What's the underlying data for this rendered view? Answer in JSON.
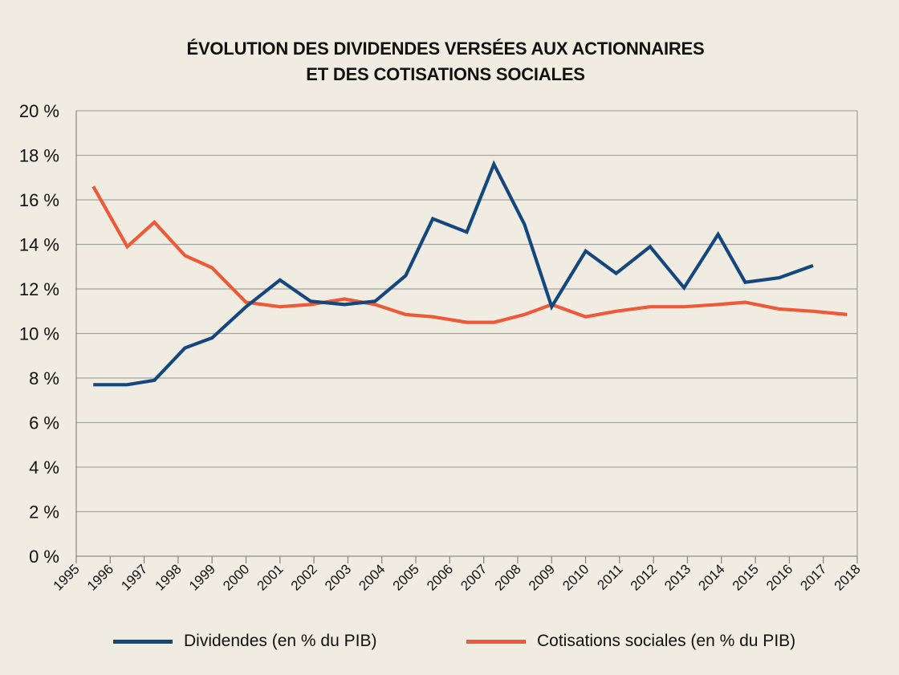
{
  "chart_data": {
    "type": "line",
    "title_lines": [
      "ÉVOLUTION DES DIVIDENDES VERSÉES AUX ACTIONNAIRES",
      "ET DES COTISATIONS SOCIALES"
    ],
    "xlabel": "",
    "ylabel": "",
    "ylim": [
      0,
      20
    ],
    "y_ticks": [
      0,
      2,
      4,
      6,
      8,
      10,
      12,
      14,
      16,
      18,
      20
    ],
    "y_tick_labels": [
      "0 %",
      "2 %",
      "4 %",
      "6 %",
      "8 %",
      "10 %",
      "12 %",
      "14 %",
      "16 %",
      "18 %",
      "20 %"
    ],
    "x_tick_labels": [
      "1995",
      "1996",
      "1997",
      "1998",
      "1999",
      "2000",
      "2001",
      "2002",
      "2003",
      "2004",
      "2005",
      "2006",
      "2007",
      "2008",
      "2009",
      "2010",
      "2011",
      "2012",
      "2013",
      "2014",
      "2015",
      "2016",
      "2017",
      "2018"
    ],
    "grid": true,
    "legend_position": "bottom",
    "series": [
      {
        "name": "Dividendes (en % du PIB)",
        "color": "#15477f",
        "x": [
          1995.5,
          1996.5,
          1997.3,
          1998.2,
          1999.0,
          2000.0,
          2001.0,
          2001.9,
          2002.9,
          2003.8,
          2004.7,
          2005.5,
          2006.5,
          2007.3,
          2008.2,
          2009.0,
          2010.0,
          2010.9,
          2011.9,
          2012.9,
          2013.9,
          2014.7,
          2015.7,
          2016.7
        ],
        "y": [
          7.7,
          7.7,
          7.9,
          9.35,
          9.8,
          11.2,
          12.4,
          11.45,
          11.3,
          11.45,
          12.6,
          15.15,
          14.55,
          17.6,
          14.9,
          11.2,
          13.7,
          12.7,
          13.9,
          12.05,
          14.45,
          12.3,
          12.5,
          13.05
        ]
      },
      {
        "name": "Cotisations sociales (en % du PIB)",
        "color": "#ee5a38",
        "x": [
          1995.5,
          1996.5,
          1997.3,
          1998.2,
          1999.0,
          2000.0,
          2001.0,
          2001.9,
          2002.9,
          2003.8,
          2004.7,
          2005.5,
          2006.5,
          2007.3,
          2008.2,
          2009.0,
          2010.0,
          2010.9,
          2011.9,
          2012.9,
          2013.9,
          2014.7,
          2015.7,
          2016.7,
          2017.7
        ],
        "y": [
          16.6,
          13.9,
          15.0,
          13.5,
          12.95,
          11.4,
          11.2,
          11.3,
          11.55,
          11.3,
          10.85,
          10.75,
          10.5,
          10.5,
          10.85,
          11.3,
          10.75,
          11.0,
          11.2,
          11.2,
          11.3,
          11.4,
          11.1,
          11.0,
          10.85
        ]
      }
    ]
  }
}
